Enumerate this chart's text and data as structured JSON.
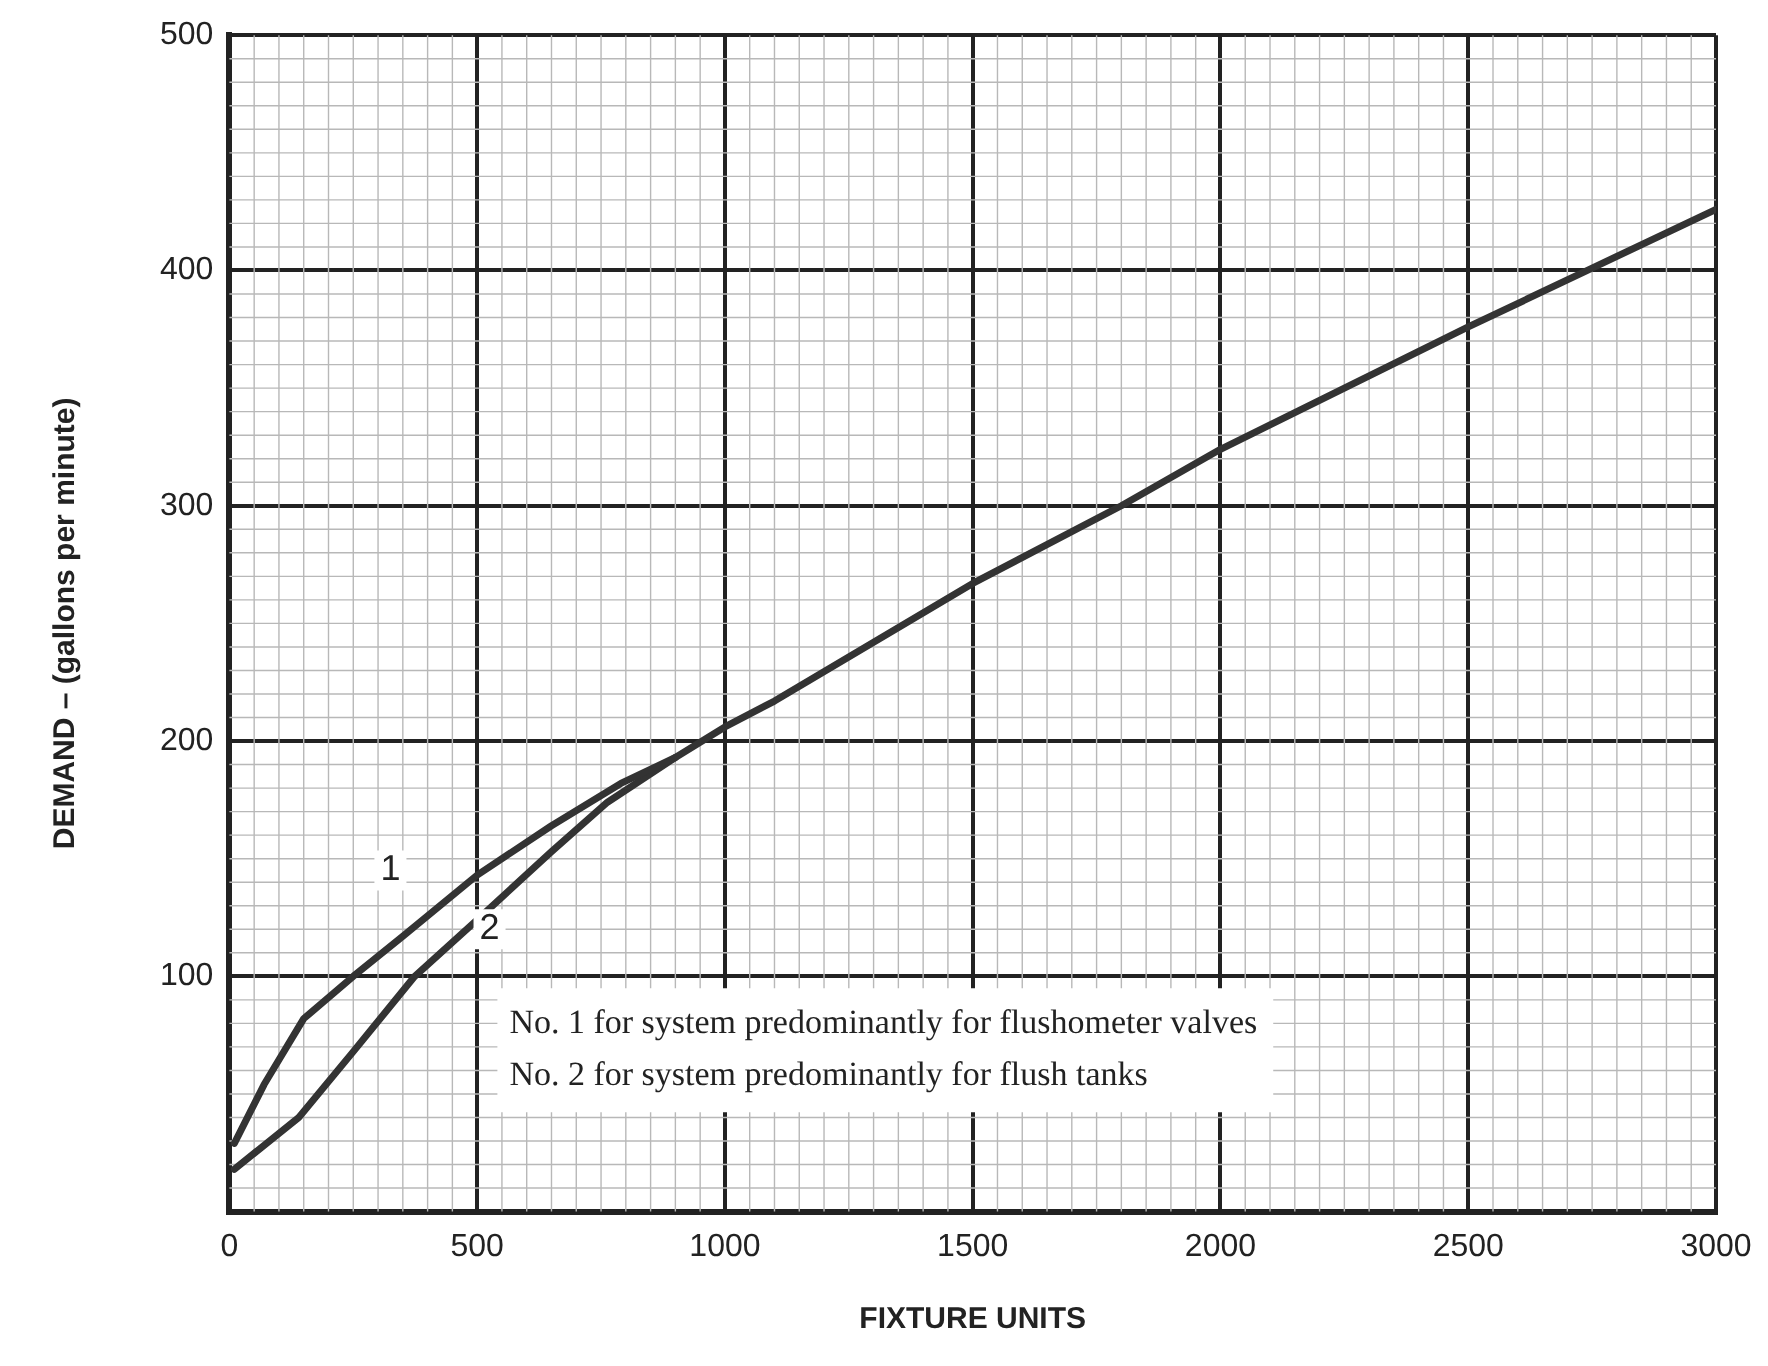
{
  "chart_data": {
    "type": "line",
    "xlabel": "FIXTURE UNITS",
    "ylabel": "DEMAND – (gallons per minute)",
    "xlim": [
      0,
      3000
    ],
    "xticks": [
      0,
      500,
      1000,
      1500,
      2000,
      2500,
      3000
    ],
    "ylim": [
      0,
      500
    ],
    "yticks": [
      100,
      200,
      300,
      400,
      500
    ],
    "grid": true,
    "legend": false,
    "marker": "none",
    "line_style": "solid",
    "series": [
      {
        "color": "#333333",
        "x": [
          10,
          70,
          150,
          250,
          350,
          500,
          650,
          790,
          900,
          1000,
          1100,
          1500,
          1800,
          2000,
          2250,
          2500,
          2750,
          3000
        ],
        "values": [
          29,
          54,
          82,
          100,
          117,
          143,
          164,
          182,
          193,
          206,
          217,
          267,
          300,
          324,
          350,
          376,
          401,
          426
        ]
      },
      {
        "color": "#333333",
        "x": [
          10,
          140,
          250,
          374,
          500,
          650,
          763,
          900
        ],
        "values": [
          18,
          40,
          68,
          100,
          124,
          153,
          174,
          193
        ]
      }
    ],
    "annotations": [
      {
        "text": "1",
        "x": 325,
        "y": 145
      },
      {
        "text": "2",
        "x": 525,
        "y": 120
      },
      "No. 1 for system predominantly for flushometer valves",
      "No. 2 for system predominantly for flush tanks"
    ]
  }
}
